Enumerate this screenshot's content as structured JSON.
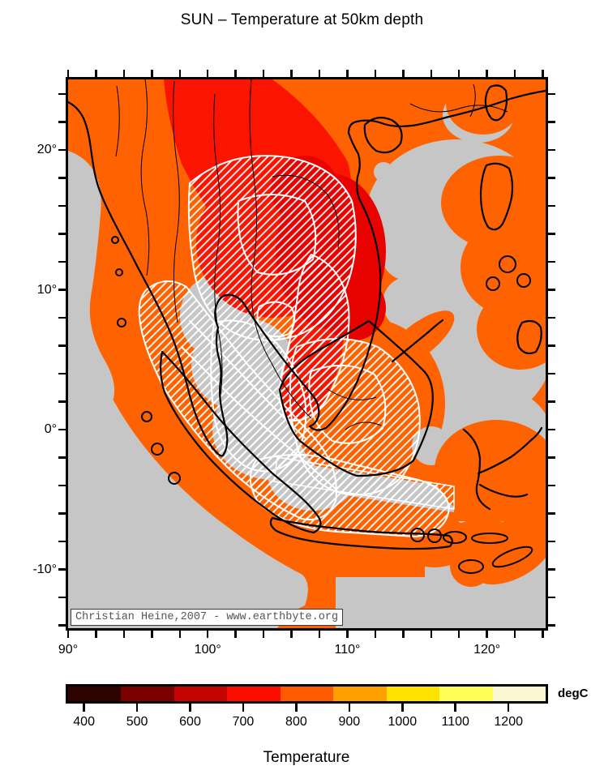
{
  "title": "SUN – Temperature at 50km depth",
  "map": {
    "attribution": "Christian Heine,2007 - www.earthbyte.org",
    "x_axis": {
      "labels": [
        {
          "text": "90°",
          "lon": 90
        },
        {
          "text": "100°",
          "lon": 100
        },
        {
          "text": "110°",
          "lon": 110
        },
        {
          "text": "120°",
          "lon": 120
        }
      ],
      "lon_min": 90,
      "lon_max": 124.2,
      "minor_step_deg": 2
    },
    "y_axis": {
      "labels": [
        {
          "text": "20°",
          "lat": 20
        },
        {
          "text": "10°",
          "lat": 10
        },
        {
          "text": "0°",
          "lat": 0
        },
        {
          "text": "-10°",
          "lat": -10
        }
      ],
      "lat_min": -14.2,
      "lat_max": 25.05,
      "minor_step_deg": 2
    }
  },
  "colorbar": {
    "unit": "degC",
    "title": "Temperature",
    "value_min": 370,
    "value_max": 1270,
    "ticks": [
      {
        "value": 400,
        "text": "400"
      },
      {
        "value": 500,
        "text": "500"
      },
      {
        "value": 600,
        "text": "600"
      },
      {
        "value": 700,
        "text": "700"
      },
      {
        "value": 800,
        "text": "800"
      },
      {
        "value": 900,
        "text": "900"
      },
      {
        "value": 1000,
        "text": "1000"
      },
      {
        "value": 1100,
        "text": "1100"
      },
      {
        "value": 1200,
        "text": "1200"
      }
    ],
    "segment_colors": [
      "#2d0300",
      "#7a0100",
      "#c30300",
      "#fb0e00",
      "#ff5b00",
      "#ffa000",
      "#ffe300",
      "#ffff55",
      "#faf6d0"
    ]
  },
  "colors": {
    "sea_gray": "#c6c6c6",
    "field_orange": "#ff6200",
    "anomaly_red": "#fb1400",
    "anomaly_deep_red": "#e90300",
    "coastline_black": "#000000",
    "tectonic_white": "#ffffff"
  }
}
